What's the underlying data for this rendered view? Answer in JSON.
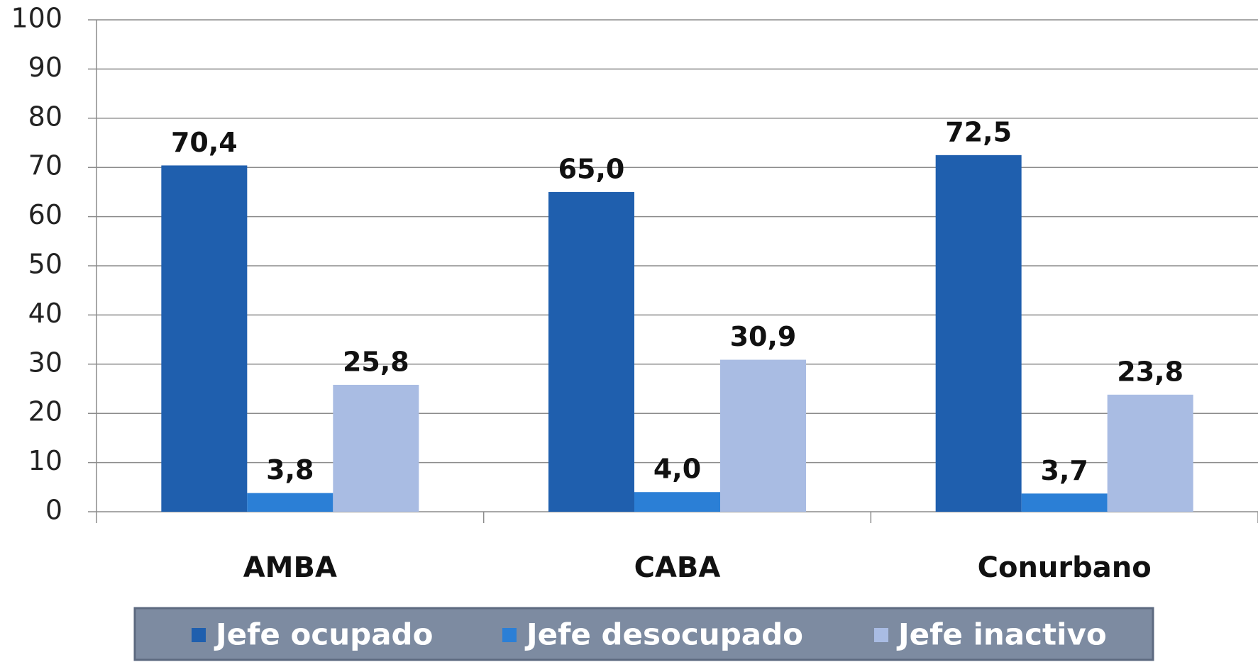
{
  "chart_data": {
    "type": "bar",
    "categories": [
      "AMBA",
      "CABA",
      "Conurbano"
    ],
    "series": [
      {
        "name": "Jefe ocupado",
        "color": "#1f5fae",
        "values": [
          70.4,
          65.0,
          72.5
        ],
        "value_labels": [
          "70,4",
          "65,0",
          "72,5"
        ]
      },
      {
        "name": "Jefe desocupado",
        "color": "#2b7fd6",
        "values": [
          3.8,
          4.0,
          3.7
        ],
        "value_labels": [
          "3,8",
          "4,0",
          "3,7"
        ]
      },
      {
        "name": "Jefe inactivo",
        "color": "#a9bce3",
        "values": [
          25.8,
          30.9,
          23.8
        ],
        "value_labels": [
          "25,8",
          "30,9",
          "23,8"
        ]
      }
    ],
    "ylim": [
      0,
      100
    ],
    "yticks": [
      0,
      10,
      20,
      30,
      40,
      50,
      60,
      70,
      80,
      90,
      100
    ],
    "grid": true,
    "legend": "bottom"
  }
}
